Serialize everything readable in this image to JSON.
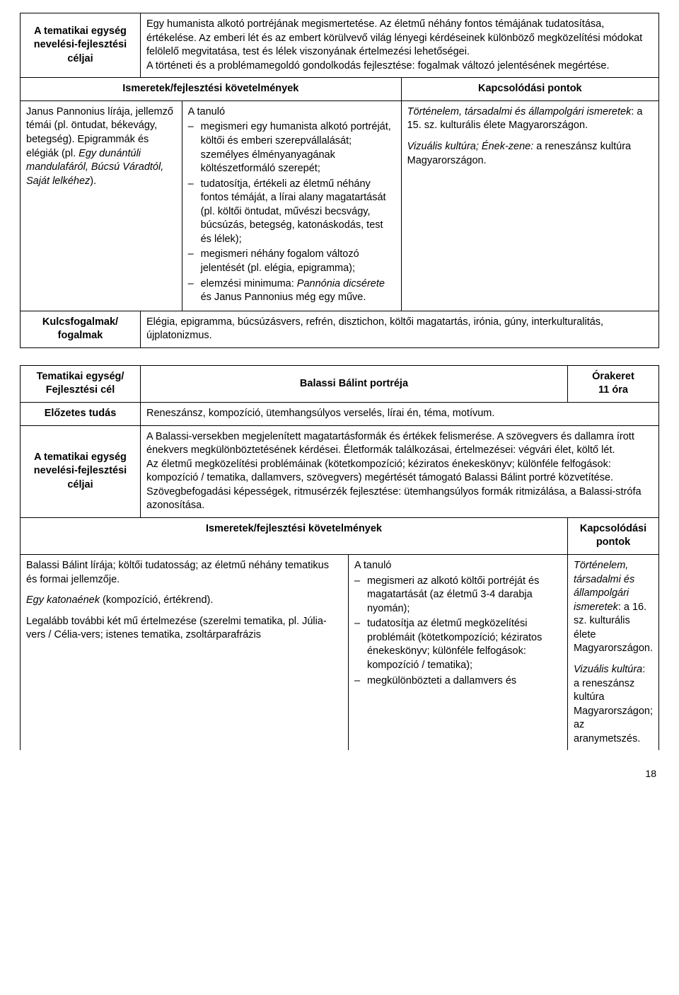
{
  "section1": {
    "row1_label": "A tematikai egység nevelési-fejlesztési céljai",
    "row1_body": "Egy humanista alkotó portréjának megismertetése. Az életmű néhány fontos témájának tudatosítása, értékelése. Az emberi lét és az embert körülvevő világ lényegi kérdéseinek különböző megközelítési módokat felölelő megvitatása, test és lélek viszonyának értelmezési lehetőségei.\nA történeti és a problémamegoldó gondolkodás fejlesztése: fogalmak változó jelentésének megértése.",
    "req_hdr": "Ismeretek/fejlesztési követelmények",
    "kapcs_hdr": "Kapcsolódási pontok",
    "left_text": "Janus Pannonius lírája, jellemző témái (pl. öntudat, békevágy, betegség). Epigrammák és elégiák (pl. ",
    "left_text_italic": "Egy dunántúli mandulafáról, Búcsú Váradtól, Saját lelkéhez",
    "left_text_end": ").",
    "mid_intro": "A tanuló",
    "mid_li1": "megismeri egy humanista alkotó portréját, költői és emberi szerepvállalását; személyes élményanyagának költészetformáló szerepét;",
    "mid_li2": "tudatosítja, értékeli az életmű néhány fontos témáját, a lírai alany magatartását (pl. költői öntudat, művészi becsvágy, búcsúzás, betegség, katonáskodás, test és lélek);",
    "mid_li3": "megismeri néhány fogalom változó jelentését (pl. elégia, epigramma);",
    "mid_li4_a": "elemzési minimuma: ",
    "mid_li4_i": "Pannónia dicsérete",
    "mid_li4_b": " és Janus Pannonius még egy műve.",
    "right_1_i": "Történelem, társadalmi és állampolgári ismeretek",
    "right_1_r": ": a 15. sz. kulturális élete Magyarországon.",
    "right_2_i": "Vizuális kultúra; Ének-zene:",
    "right_2_r": " a reneszánsz kultúra Magyarországon.",
    "kf_label": "Kulcsfogalmak/ fogalmak",
    "kf_body": "Elégia, epigramma, búcsúzásvers, refrén, disztichon, költői magatartás, irónia, gúny, interkulturalitás, újplatonizmus."
  },
  "section2": {
    "r1c1": "Tematikai egység/ Fejlesztési cél",
    "r1c2": "Balassi Bálint portréja",
    "r1c3a": "Órakeret",
    "r1c3b": "11 óra",
    "r2c1": "Előzetes tudás",
    "r2c2": "Reneszánsz, kompozíció, ütemhangsúlyos verselés, lírai én, téma, motívum.",
    "r3c1": "A tematikai egység nevelési-fejlesztési céljai",
    "r3c2": "A Balassi-versekben megjelenített magatartásformák és értékek felismerése. A szövegvers és dallamra írott énekvers megkülönböztetésének kérdései. Életformák találkozásai, értelmezései: végvári élet, költő lét.\nAz életmű megközelítési problémáinak (kötetkompozíció; kéziratos énekeskönyv; különféle felfogások: kompozíció / tematika, dallamvers, szövegvers) megértését támogató Balassi Bálint portré közvetítése. Szövegbefogadási képességek, ritmusérzék fejlesztése: ütemhangsúlyos formák ritmizálása, a Balassi-strófa azonosítása.",
    "req_hdr": "Ismeretek/fejlesztési követelmények",
    "kapcs_hdr": "Kapcsolódási pontok",
    "left_p1": "Balassi Bálint lírája; költői tudatosság; az életmű néhány tematikus és formai jellemzője.",
    "left_p2_i": "Egy katonaének",
    "left_p2_r": " (kompozíció, értékrend).",
    "left_p3": "Legalább további két mű értelmezése (szerelmi tematika, pl. Júlia-vers / Célia-vers; istenes tematika, zsoltárparafrázis",
    "mid_intro": "A tanuló",
    "mid_li1": "megismeri az alkotó költői portréját és magatartását (az életmű 3-4 darabja nyomán);",
    "mid_li2": "tudatosítja az életmű megközelítési problémáit (kötetkompozíció; kéziratos énekeskönyv; különféle felfogások: kompozíció / tematika);",
    "mid_li3": "megkülönbözteti a dallamvers és",
    "right_1_i": "Történelem, társadalmi és állampolgári ismeretek",
    "right_1_r": ": a 16. sz. kulturális élete Magyarországon.",
    "right_2_i": "Vizuális kultúra",
    "right_2_r": ": a reneszánsz kultúra Magyarországon; az aranymetszés."
  },
  "page_number": "18"
}
